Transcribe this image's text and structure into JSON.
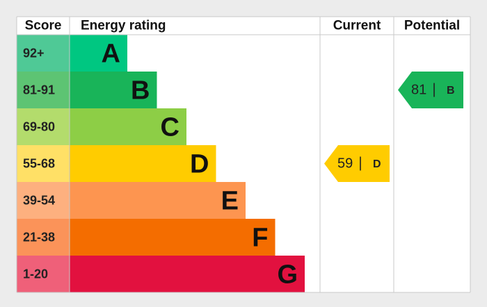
{
  "header": {
    "score": "Score",
    "rating": "Energy rating",
    "current": "Current",
    "potential": "Potential"
  },
  "rows": [
    {
      "score": "92+",
      "rating": "A",
      "color": "#00c781",
      "light_color": "#4fc996"
    },
    {
      "score": "81-91",
      "rating": "B",
      "color": "#19b459",
      "light_color": "#5dc473"
    },
    {
      "score": "69-80",
      "rating": "C",
      "color": "#8dce46",
      "light_color": "#b3dc6c"
    },
    {
      "score": "55-68",
      "rating": "D",
      "color": "#ffcc00",
      "light_color": "#ffe066"
    },
    {
      "score": "39-54",
      "rating": "E",
      "color": "#fd9550",
      "light_color": "#fdb07f"
    },
    {
      "score": "21-38",
      "rating": "F",
      "color": "#f46d00",
      "light_color": "#fb9359"
    },
    {
      "score": "1-20",
      "rating": "G",
      "color": "#e2113f",
      "light_color": "#ef6079"
    }
  ],
  "current": {
    "value": 59,
    "rating": "D"
  },
  "potential": {
    "value": 81,
    "rating": "B"
  }
}
